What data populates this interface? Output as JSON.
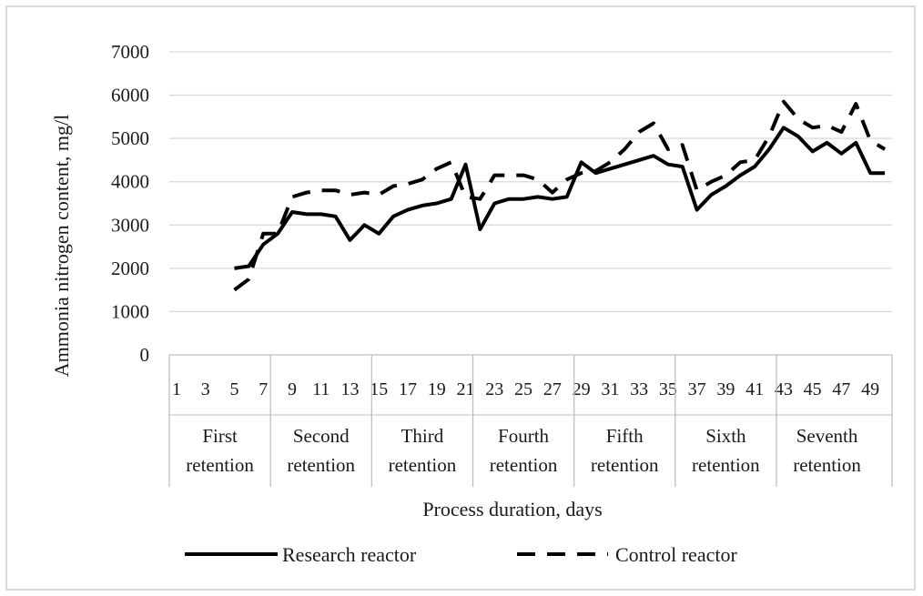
{
  "chart_data": {
    "type": "line",
    "title": "",
    "xlabel": "Process duration, days",
    "ylabel": "Ammonia nitrogen content, mg/l",
    "ylim": [
      0,
      7000
    ],
    "yticks": [
      0,
      1000,
      2000,
      3000,
      4000,
      5000,
      6000,
      7000
    ],
    "grid": "horizontal",
    "legend_position": "bottom",
    "day_labels": [
      "1",
      "3",
      "5",
      "7",
      "9",
      "11",
      "13",
      "15",
      "17",
      "19",
      "21",
      "23",
      "25",
      "27",
      "29",
      "31",
      "33",
      "35",
      "37",
      "39",
      "41",
      "43",
      "45",
      "47",
      "49"
    ],
    "groups": [
      {
        "line1": "First",
        "line2": "retention",
        "start_day": 1,
        "end_day": 7
      },
      {
        "line1": "Second",
        "line2": "retention",
        "start_day": 8,
        "end_day": 14
      },
      {
        "line1": "Third",
        "line2": "retention",
        "start_day": 15,
        "end_day": 21
      },
      {
        "line1": "Fourth",
        "line2": "retention",
        "start_day": 22,
        "end_day": 28
      },
      {
        "line1": "Fifth",
        "line2": "retention",
        "start_day": 29,
        "end_day": 35
      },
      {
        "line1": "Sixth",
        "line2": "retention",
        "start_day": 36,
        "end_day": 42
      },
      {
        "line1": "Seventh",
        "line2": "retention",
        "start_day": 43,
        "end_day": 49
      }
    ],
    "series": [
      {
        "name": "Research reactor",
        "style": "solid",
        "color": "#000000",
        "x": [
          5,
          6,
          7,
          8,
          9,
          10,
          11,
          12,
          13,
          14,
          15,
          16,
          17,
          18,
          19,
          20,
          21,
          22,
          23,
          24,
          25,
          26,
          27,
          28,
          29,
          30,
          31,
          32,
          33,
          34,
          35,
          36,
          37,
          38,
          39,
          40,
          41,
          42,
          43,
          44,
          45,
          46,
          47,
          48,
          49,
          50
        ],
        "y": [
          2000,
          2050,
          2550,
          2800,
          3300,
          3250,
          3250,
          3200,
          2650,
          3000,
          2800,
          3200,
          3350,
          3450,
          3500,
          3600,
          4400,
          2900,
          3500,
          3600,
          3600,
          3650,
          3600,
          3650,
          4450,
          4200,
          4300,
          4400,
          4500,
          4600,
          4400,
          4350,
          3350,
          3700,
          3900,
          4150,
          4350,
          4750,
          5250,
          5050,
          4700,
          4900,
          4650,
          4900,
          4200,
          4200
        ]
      },
      {
        "name": "Control reactor",
        "style": "dashed",
        "color": "#000000",
        "x": [
          5,
          6,
          7,
          8,
          9,
          10,
          11,
          12,
          13,
          14,
          15,
          16,
          17,
          18,
          19,
          20,
          21,
          22,
          23,
          24,
          25,
          26,
          27,
          28,
          29,
          30,
          31,
          32,
          33,
          34,
          35,
          36,
          37,
          38,
          39,
          40,
          41,
          42,
          43,
          44,
          45,
          46,
          47,
          48,
          49,
          50
        ],
        "y": [
          1500,
          1750,
          2800,
          2800,
          3650,
          3750,
          3800,
          3800,
          3700,
          3750,
          3700,
          3900,
          3950,
          4050,
          4300,
          4450,
          3650,
          3600,
          4150,
          4150,
          4150,
          4050,
          3750,
          4050,
          4200,
          4250,
          4450,
          4750,
          5150,
          5350,
          4750,
          4850,
          3800,
          4000,
          4150,
          4450,
          4500,
          5050,
          5850,
          5450,
          5250,
          5300,
          5150,
          5800,
          4950,
          4750
        ]
      }
    ]
  }
}
